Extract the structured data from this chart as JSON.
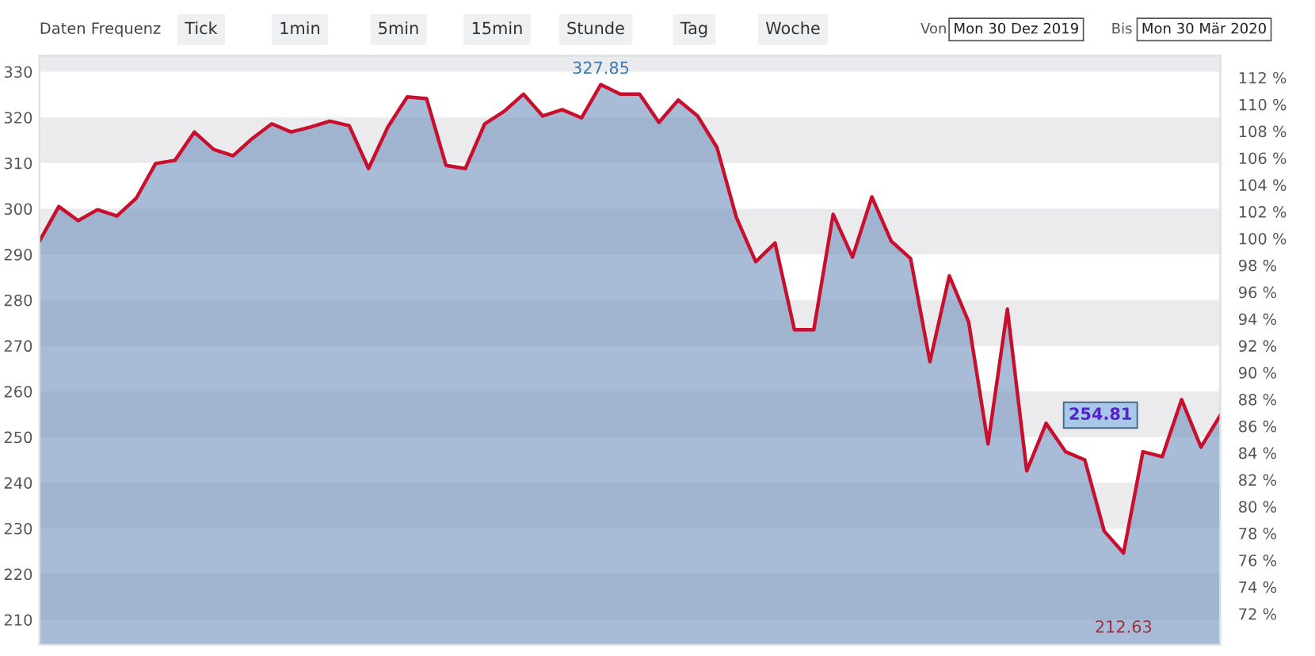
{
  "chart_data": {
    "type": "area",
    "categories": [
      null,
      null,
      null,
      null,
      null,
      null,
      null,
      null,
      null,
      null,
      null,
      null,
      null,
      null,
      null,
      null,
      null,
      null,
      null,
      null,
      null,
      null,
      null,
      null,
      null,
      null,
      null,
      null,
      null,
      null,
      null,
      null,
      null,
      null,
      null,
      null,
      null,
      null,
      null,
      null,
      null,
      null,
      null,
      null,
      null,
      null,
      null,
      null,
      null,
      null,
      null,
      null,
      null,
      null,
      null,
      null,
      null,
      null,
      null,
      null,
      null,
      null
    ],
    "series": [
      {
        "color": "#6e8fbd",
        "values": [
          292.9,
          300.5,
          297.4,
          299.8,
          298.4,
          302.3,
          309.9,
          310.6,
          316.8,
          313.0,
          311.6,
          315.4,
          318.6,
          316.8,
          317.9,
          319.2,
          318.2,
          308.8,
          317.9,
          324.5,
          324.1,
          309.5,
          308.8,
          318.6,
          321.3,
          325.1,
          320.3,
          321.7,
          319.9,
          327.2,
          325.1,
          325.1,
          318.9,
          323.8,
          320.3,
          313.4,
          298.1,
          288.4,
          292.5,
          273.5,
          273.5,
          298.8,
          289.4,
          302.6,
          292.9,
          289.1,
          266.5,
          285.3,
          275.2,
          248.5,
          278.0,
          242.6,
          253.0,
          246.8,
          245.0,
          229.4,
          224.6,
          246.8,
          245.7,
          258.2,
          247.8,
          254.8
        ]
      },
      {
        "type": "line",
        "color": "#c8102e",
        "values": [
          292.9,
          300.5,
          297.4,
          299.8,
          298.4,
          302.3,
          309.9,
          310.6,
          316.8,
          313.0,
          311.6,
          315.4,
          318.6,
          316.8,
          317.9,
          319.2,
          318.2,
          308.8,
          317.9,
          324.5,
          324.1,
          309.5,
          308.8,
          318.6,
          321.3,
          325.1,
          320.3,
          321.7,
          319.9,
          327.2,
          325.1,
          325.1,
          318.9,
          323.8,
          320.3,
          313.4,
          298.1,
          288.4,
          292.5,
          273.5,
          273.5,
          298.8,
          289.4,
          302.6,
          292.9,
          289.1,
          266.5,
          285.3,
          275.2,
          248.5,
          278.0,
          242.6,
          253.0,
          246.8,
          245.0,
          229.4,
          224.6,
          246.8,
          245.7,
          258.2,
          247.8,
          254.8
        ]
      }
    ],
    "ylim": [
      204.5,
      333.5
    ],
    "yticks": [
      210,
      220,
      230,
      240,
      250,
      260,
      270,
      280,
      290,
      300,
      310,
      320,
      330
    ],
    "y2lim": [
      69.68,
      113.63
    ],
    "y2ticks": [
      {
        "value": 72,
        "label": "72 %"
      },
      {
        "value": 74,
        "label": "74 %"
      },
      {
        "value": 76,
        "label": "76 %"
      },
      {
        "value": 78,
        "label": "78 %"
      },
      {
        "value": 80,
        "label": "80 %"
      },
      {
        "value": 82,
        "label": "82 %"
      },
      {
        "value": 84,
        "label": "84 %"
      },
      {
        "value": 86,
        "label": "86 %"
      },
      {
        "value": 88,
        "label": "88 %"
      },
      {
        "value": 90,
        "label": "90 %"
      },
      {
        "value": 92,
        "label": "92 %"
      },
      {
        "value": 94,
        "label": "94 %"
      },
      {
        "value": 96,
        "label": "96 %"
      },
      {
        "value": 98,
        "label": "98 %"
      },
      {
        "value": 100,
        "label": "100 %"
      },
      {
        "value": 102,
        "label": "102 %"
      },
      {
        "value": 104,
        "label": "104 %"
      },
      {
        "value": 106,
        "label": "106 %"
      },
      {
        "value": 108,
        "label": "108 %"
      },
      {
        "value": 110,
        "label": "110 %"
      },
      {
        "value": 112,
        "label": "112 %"
      }
    ],
    "bands": [
      {
        "axis": "y",
        "from": 330,
        "to": 333.5,
        "color": "#ebebee"
      },
      {
        "axis": "y",
        "from": 310,
        "to": 320,
        "color": "#ebebee"
      },
      {
        "axis": "y",
        "from": 290,
        "to": 300,
        "color": "#ebebee"
      },
      {
        "axis": "y",
        "from": 270,
        "to": 280,
        "color": "#ebebee"
      },
      {
        "axis": "y",
        "from": 250,
        "to": 260,
        "color": "#ebebee"
      },
      {
        "axis": "y",
        "from": 230,
        "to": 240,
        "color": "#ebebee"
      },
      {
        "axis": "y",
        "from": 210,
        "to": 220,
        "color": "#ebebee"
      }
    ],
    "annotations": [
      "Daten Frequenz",
      "Tick",
      "1min",
      "5min",
      "15min",
      "Stunde",
      "Tag",
      "Woche",
      "Von",
      "Mon 30 Dez 2019",
      "Bis",
      "Mon 30 Mär 2020",
      {
        "text": "327.85",
        "y": 327.85
      },
      "212.63",
      "254.81"
    ],
    "grid": false
  }
}
